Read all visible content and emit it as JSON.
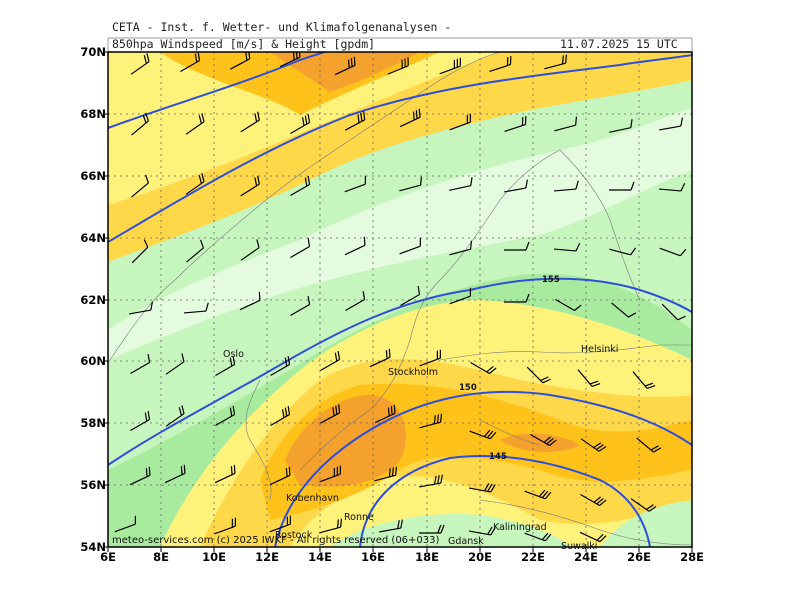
{
  "header": {
    "title": "CETA - Inst. f. Wetter- und Klimafolgenanalysen -",
    "subtitle": "850hpa Windspeed [m/s] & Height [gpdm]",
    "valid_time": "11.07.2025 15 UTC"
  },
  "axes": {
    "lat_labels": [
      "70N",
      "68N",
      "66N",
      "64N",
      "62N",
      "60N",
      "58N",
      "56N",
      "54N"
    ],
    "lon_labels": [
      "6E",
      "8E",
      "10E",
      "12E",
      "14E",
      "16E",
      "18E",
      "20E",
      "22E",
      "24E",
      "26E",
      "28E"
    ]
  },
  "cities": [
    {
      "name": "Oslo"
    },
    {
      "name": "Stockholm"
    },
    {
      "name": "Helsinki"
    },
    {
      "name": "Kobenhavn"
    },
    {
      "name": "Ronne"
    },
    {
      "name": "Rostock"
    },
    {
      "name": "Kaliningrad"
    },
    {
      "name": "Suwalki"
    },
    {
      "name": "Gdansk"
    }
  ],
  "isohypse_labels": [
    "155",
    "150",
    "145"
  ],
  "copyright": "meteo-services.com (c) 2025 IWKF - All rights reserved (06+033)",
  "colors": {
    "calm_lightgreen": "#e4fbdf",
    "light_green": "#c6f5bd",
    "green": "#a9eb9e",
    "light_yellow": "#fff27a",
    "yellow": "#ffd84a",
    "orange": "#ffc21a",
    "dark_orange": "#f5a12e",
    "isohypse": "#2e4fd8",
    "grid": "#666666"
  }
}
